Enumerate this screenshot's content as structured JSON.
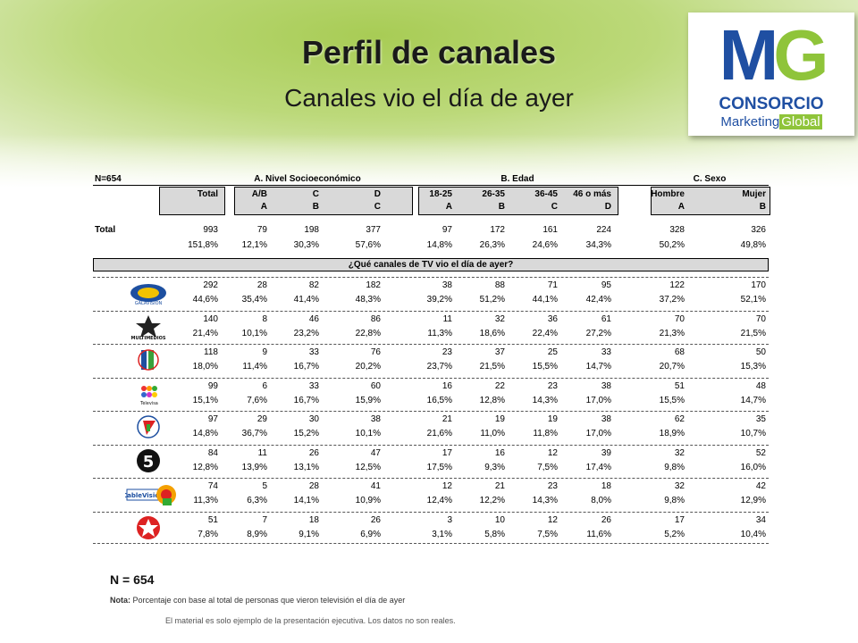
{
  "title": "Perfil de canales",
  "subtitle": "Canales vio el día de ayer",
  "logo": {
    "mark_m": "M",
    "mark_g": "G",
    "line1": "CONSORCIO",
    "line2a": "Marketing",
    "line2b": "Global"
  },
  "table": {
    "n_label": "N=654",
    "group_a": "A. Nivel Socioeconómico",
    "group_b": "B. Edad",
    "group_c": "C. Sexo",
    "columns": [
      "Total",
      "A/B",
      "C",
      "D",
      "18-25",
      "26-35",
      "36-45",
      "46 o más",
      "Hombre",
      "Mujer"
    ],
    "letters": [
      "",
      "A",
      "B",
      "C",
      "A",
      "B",
      "C",
      "D",
      "A",
      "B"
    ],
    "total_label": "Total",
    "total_counts": [
      "993",
      "79",
      "198",
      "377",
      "97",
      "172",
      "161",
      "224",
      "328",
      "326"
    ],
    "total_pcts": [
      "151,8%",
      "12,1%",
      "30,3%",
      "57,6%",
      "14,8%",
      "26,3%",
      "24,6%",
      "34,3%",
      "50,2%",
      "49,8%"
    ],
    "question": "¿Qué canales de TV vio el día de ayer?",
    "channels": [
      {
        "icon": "galavision-logo-icon",
        "counts": [
          "292",
          "28",
          "82",
          "182",
          "38",
          "88",
          "71",
          "95",
          "122",
          "170"
        ],
        "pcts": [
          "44,6%",
          "35,4%",
          "41,4%",
          "48,3%",
          "39,2%",
          "51,2%",
          "44,1%",
          "42,4%",
          "37,2%",
          "52,1%"
        ]
      },
      {
        "icon": "multimedios-logo-icon",
        "counts": [
          "140",
          "8",
          "46",
          "86",
          "11",
          "32",
          "36",
          "61",
          "70",
          "70"
        ],
        "pcts": [
          "21,4%",
          "10,1%",
          "23,2%",
          "22,8%",
          "11,3%",
          "18,6%",
          "22,4%",
          "27,2%",
          "21,3%",
          "21,5%"
        ]
      },
      {
        "icon": "azteca-trece-logo-icon",
        "counts": [
          "118",
          "9",
          "33",
          "76",
          "23",
          "37",
          "25",
          "33",
          "68",
          "50"
        ],
        "pcts": [
          "18,0%",
          "11,4%",
          "16,7%",
          "20,2%",
          "23,7%",
          "21,5%",
          "15,5%",
          "14,7%",
          "20,7%",
          "15,3%"
        ]
      },
      {
        "icon": "televisa-logo-icon",
        "counts": [
          "99",
          "6",
          "33",
          "60",
          "16",
          "22",
          "23",
          "38",
          "51",
          "48"
        ],
        "pcts": [
          "15,1%",
          "7,6%",
          "16,7%",
          "15,9%",
          "16,5%",
          "12,8%",
          "14,3%",
          "17,0%",
          "15,5%",
          "14,7%"
        ]
      },
      {
        "icon": "azteca-siete-logo-icon",
        "counts": [
          "97",
          "29",
          "30",
          "38",
          "21",
          "19",
          "19",
          "38",
          "62",
          "35"
        ],
        "pcts": [
          "14,8%",
          "36,7%",
          "15,2%",
          "10,1%",
          "21,6%",
          "11,0%",
          "11,8%",
          "17,0%",
          "18,9%",
          "10,7%"
        ]
      },
      {
        "icon": "canal-5-logo-icon",
        "counts": [
          "84",
          "11",
          "26",
          "47",
          "17",
          "16",
          "12",
          "39",
          "32",
          "52"
        ],
        "pcts": [
          "12,8%",
          "13,9%",
          "13,1%",
          "12,5%",
          "17,5%",
          "9,3%",
          "7,5%",
          "17,4%",
          "9,8%",
          "16,0%"
        ]
      },
      {
        "icon": "cablevision-logo-icon",
        "counts": [
          "74",
          "5",
          "28",
          "41",
          "12",
          "21",
          "23",
          "18",
          "32",
          "42"
        ],
        "pcts": [
          "11,3%",
          "6,3%",
          "14,1%",
          "10,9%",
          "12,4%",
          "12,2%",
          "14,3%",
          "8,0%",
          "9,8%",
          "12,9%"
        ]
      },
      {
        "icon": "star-channel-logo-icon",
        "counts": [
          "51",
          "7",
          "18",
          "26",
          "3",
          "10",
          "12",
          "26",
          "17",
          "34"
        ],
        "pcts": [
          "7,8%",
          "8,9%",
          "9,1%",
          "6,9%",
          "3,1%",
          "5,8%",
          "7,5%",
          "11,6%",
          "5,2%",
          "10,4%"
        ]
      }
    ]
  },
  "footer": {
    "n": "N = 654",
    "note_label": "Nota:",
    "note": "Porcentaje con base al total de personas que vieron televisión  el día de ayer",
    "disclaimer": "El material es solo ejemplo de la presentación ejecutiva.  Los datos no son reales."
  }
}
